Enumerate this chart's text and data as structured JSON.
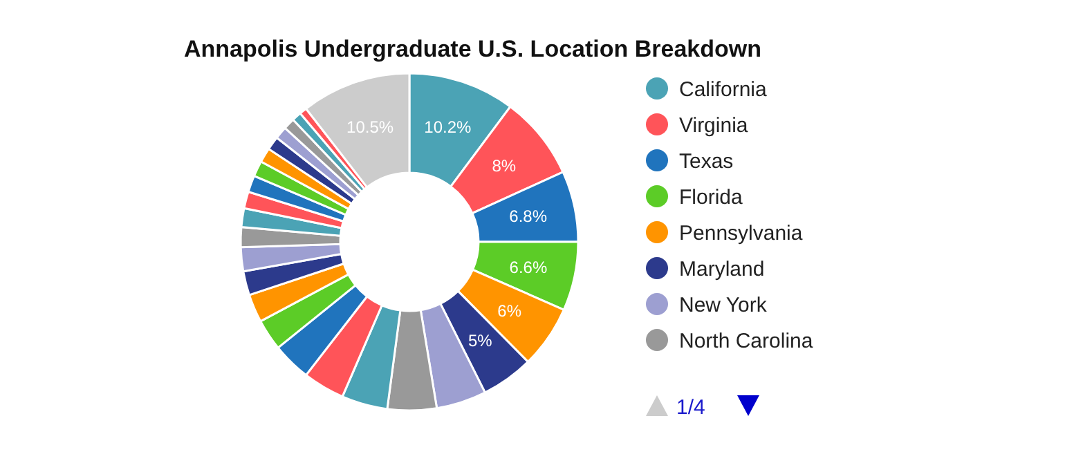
{
  "chart_data": {
    "type": "donut",
    "title": "Annapolis Undergraduate U.S. Location Breakdown",
    "categories": [
      "California",
      "Virginia",
      "Texas",
      "Florida",
      "Pennsylvania",
      "Maryland",
      "New York",
      "North Carolina",
      null,
      null,
      null,
      null,
      null,
      null,
      null,
      null,
      null,
      null,
      null,
      null,
      null,
      null,
      null,
      null,
      null,
      null,
      null
    ],
    "values": [
      10.2,
      8,
      6.8,
      6.6,
      6,
      5,
      4.8,
      4.7,
      4.4,
      4.0,
      3.7,
      3.0,
      2.7,
      2.3,
      2.3,
      1.9,
      1.8,
      1.6,
      1.6,
      1.5,
      1.4,
      1.3,
      1.2,
      1.1,
      0.9,
      0.7,
      10.5
    ],
    "colors": [
      "#4ba3b5",
      "#ff5459",
      "#2074bd",
      "#5ccc27",
      "#ff9400",
      "#2c3a8c",
      "#9d9fd1",
      "#999999",
      "#4ba3b5",
      "#ff5459",
      "#2074bd",
      "#5ccc27",
      "#ff9400",
      "#2c3a8c",
      "#9d9fd1",
      "#999999",
      "#4ba3b5",
      "#ff5459",
      "#2074bd",
      "#5ccc27",
      "#ff9400",
      "#2c3a8c",
      "#9d9fd1",
      "#999999",
      "#4ba3b5",
      "#ff5459",
      "#cccccc"
    ],
    "value_labels": [
      "10.2%",
      "8%",
      "6.8%",
      "6.6%",
      "6%",
      "5%",
      null,
      null,
      null,
      null,
      null,
      null,
      null,
      null,
      null,
      null,
      null,
      null,
      null,
      null,
      null,
      null,
      null,
      null,
      null,
      null,
      "10.5%"
    ],
    "legend": "right",
    "annotations": [
      "1/4"
    ]
  }
}
